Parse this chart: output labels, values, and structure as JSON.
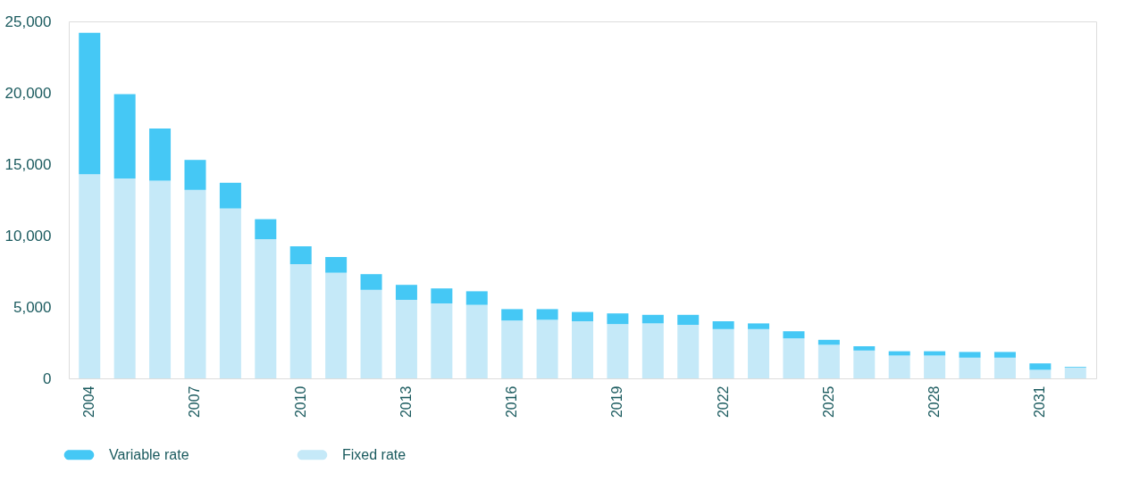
{
  "chart_data": {
    "type": "bar",
    "stacked": true,
    "categories": [
      "2004",
      null,
      null,
      "2007",
      null,
      null,
      "2010",
      null,
      null,
      "2013",
      null,
      null,
      "2016",
      null,
      null,
      "2019",
      null,
      null,
      "2022",
      null,
      null,
      "2025",
      null,
      null,
      "2028",
      null,
      null,
      "2031",
      null
    ],
    "series": [
      {
        "name": "Fixed rate",
        "color": "#c5e9f8",
        "values": [
          14300,
          14000,
          13850,
          13200,
          11900,
          9750,
          8000,
          7400,
          6200,
          5500,
          5250,
          5150,
          4050,
          4100,
          4000,
          3800,
          3850,
          3750,
          3450,
          3450,
          2800,
          2350,
          1950,
          1600,
          1600,
          1450,
          1450,
          600,
          750
        ]
      },
      {
        "name": "Variable rate",
        "color": "#45c8f5",
        "values": [
          9900,
          5900,
          3650,
          2100,
          1800,
          1400,
          1250,
          1100,
          1100,
          1050,
          1050,
          950,
          800,
          750,
          650,
          750,
          600,
          700,
          550,
          400,
          500,
          350,
          300,
          300,
          300,
          400,
          400,
          450,
          50
        ]
      }
    ],
    "ylim": [
      0,
      25000
    ],
    "yticks": [
      0,
      {
        "value": 5000,
        "label": "5,000"
      },
      {
        "value": 10000,
        "label": "10,000"
      },
      {
        "value": 15000,
        "label": "15,000"
      },
      {
        "value": 20000,
        "label": "20,000"
      },
      {
        "value": 25000,
        "label": "25,000"
      }
    ],
    "grid": false,
    "legend": "bottom left"
  }
}
